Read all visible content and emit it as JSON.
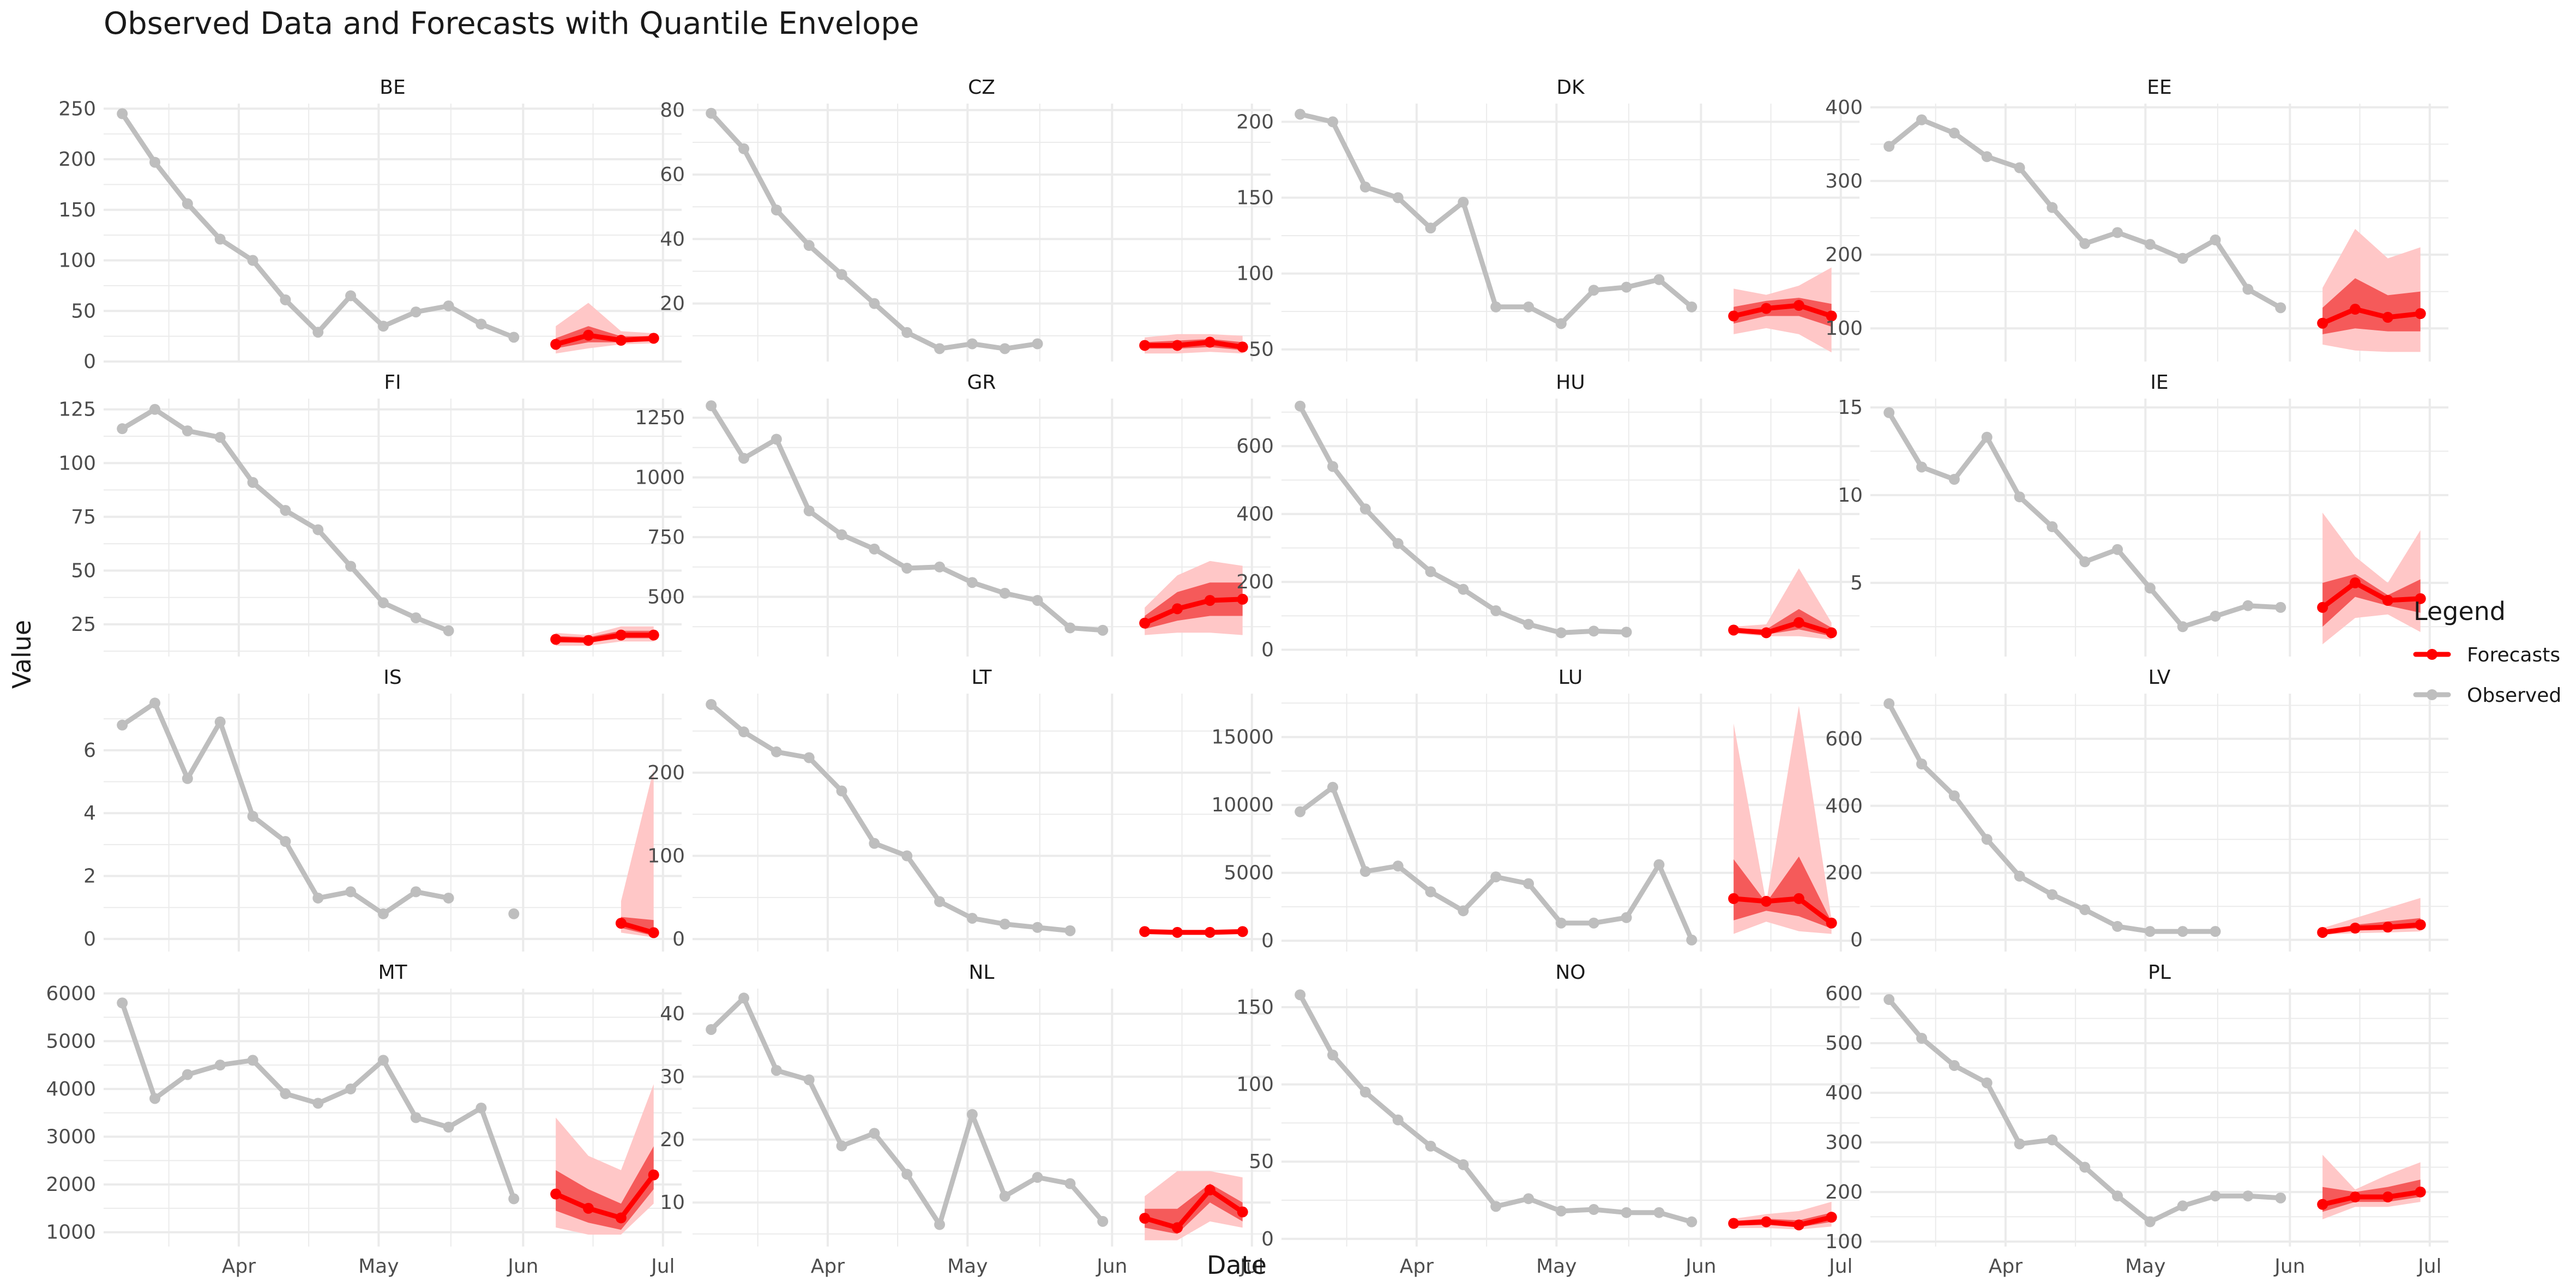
{
  "chart_data": {
    "type": "line",
    "title": "Observed Data and Forecasts with Quantile Envelope",
    "xlabel": "Date",
    "ylabel": "Value",
    "grid": true,
    "legend_placement": "right",
    "legend": {
      "title": "Legend",
      "entries": [
        {
          "name": "Forecasts",
          "color": "#ff0000"
        },
        {
          "name": "Observed",
          "color": "#bebebe"
        }
      ]
    },
    "colors": {
      "observed": "#bebebe",
      "forecast": "#ff0000",
      "band_outer": "#ffc7c7",
      "band_inner": "#f55a5a",
      "grid": "#ebebeb"
    },
    "x_axis": {
      "ticks": [
        {
          "label": "Apr",
          "date": "2021-04-01"
        },
        {
          "label": "May",
          "date": "2021-05-01"
        },
        {
          "label": "Jun",
          "date": "2021-06-01"
        },
        {
          "label": "Jul",
          "date": "2021-07-01"
        }
      ],
      "xlim": [
        "2021-03-03",
        "2021-07-05"
      ],
      "observed_dates": [
        "2021-03-07",
        "2021-03-14",
        "2021-03-21",
        "2021-03-28",
        "2021-04-04",
        "2021-04-11",
        "2021-04-18",
        "2021-04-25",
        "2021-05-02",
        "2021-05-09",
        "2021-05-16",
        "2021-05-23",
        "2021-05-30"
      ],
      "forecast_dates": [
        "2021-06-08",
        "2021-06-15",
        "2021-06-22",
        "2021-06-29"
      ]
    },
    "panels": [
      {
        "name": "BE",
        "ylim": [
          0,
          255
        ],
        "yticks": [
          0,
          50,
          100,
          150,
          200,
          250
        ],
        "observed": [
          245,
          197,
          156,
          121,
          100,
          61,
          29,
          65,
          35,
          49,
          55,
          37,
          24
        ],
        "forecast": [
          17,
          26,
          21,
          23
        ],
        "q_outer_low": [
          8,
          13,
          17,
          18
        ],
        "q_outer_high": [
          35,
          58,
          30,
          28
        ],
        "q_inner_low": [
          13,
          19,
          19,
          20
        ],
        "q_inner_high": [
          23,
          35,
          25,
          25
        ]
      },
      {
        "name": "CZ",
        "ylim": [
          2,
          82
        ],
        "yticks": [
          20,
          40,
          60,
          80
        ],
        "observed": [
          79,
          68,
          49,
          38,
          29,
          20,
          11,
          6,
          7.5,
          6,
          7.5,
          null,
          null
        ],
        "forecast": [
          7,
          7,
          8,
          6.5
        ],
        "q_outer_low": [
          4.5,
          4.5,
          5,
          4.5
        ],
        "q_outer_high": [
          9.5,
          10.5,
          10.5,
          10
        ],
        "q_inner_low": [
          6,
          6,
          6.5,
          5.5
        ],
        "q_inner_high": [
          8,
          8.5,
          9,
          8
        ]
      },
      {
        "name": "DK",
        "ylim": [
          42,
          212
        ],
        "yticks": [
          50,
          100,
          150,
          200
        ],
        "observed": [
          205,
          200,
          157,
          150,
          130,
          147,
          78,
          78,
          67,
          89,
          91,
          96,
          78
        ],
        "forecast": [
          72,
          77,
          79,
          72
        ],
        "q_outer_low": [
          60,
          64,
          60,
          48
        ],
        "q_outer_high": [
          90,
          86,
          92,
          104
        ],
        "q_inner_low": [
          67,
          72,
          72,
          65
        ],
        "q_inner_high": [
          78,
          82,
          84,
          80
        ]
      },
      {
        "name": "EE",
        "ylim": [
          55,
          405
        ],
        "yticks": [
          100,
          200,
          300,
          400
        ],
        "observed": [
          347,
          383,
          365,
          333,
          318,
          264,
          215,
          230,
          214,
          195,
          220,
          153,
          128
        ],
        "forecast": [
          107,
          126,
          115,
          120
        ],
        "q_outer_low": [
          78,
          70,
          68,
          68
        ],
        "q_outer_high": [
          155,
          235,
          195,
          210
        ],
        "q_inner_low": [
          92,
          100,
          96,
          96
        ],
        "q_inner_high": [
          128,
          168,
          145,
          150
        ]
      },
      {
        "name": "FI",
        "ylim": [
          10,
          130
        ],
        "yticks": [
          25,
          50,
          75,
          100,
          125
        ],
        "observed": [
          116,
          125,
          115,
          112,
          91,
          78,
          69,
          52,
          35,
          28,
          22,
          null,
          null
        ],
        "forecast": [
          18,
          17.5,
          20,
          20
        ],
        "q_outer_low": [
          15,
          15,
          17,
          17
        ],
        "q_outer_high": [
          21,
          20,
          24,
          24
        ],
        "q_inner_low": [
          16.5,
          16.5,
          18.5,
          18.5
        ],
        "q_inner_high": [
          19.5,
          19,
          22,
          22
        ]
      },
      {
        "name": "GR",
        "ylim": [
          250,
          1330
        ],
        "yticks": [
          500,
          750,
          1000,
          1250
        ],
        "observed": [
          1300,
          1080,
          1160,
          860,
          760,
          700,
          620,
          625,
          560,
          515,
          485,
          370,
          360
        ],
        "forecast": [
          390,
          450,
          485,
          490
        ],
        "q_outer_low": [
          340,
          350,
          350,
          340
        ],
        "q_outer_high": [
          455,
          590,
          650,
          630
        ],
        "q_inner_low": [
          365,
          400,
          420,
          420
        ],
        "q_inner_high": [
          420,
          520,
          560,
          560
        ]
      },
      {
        "name": "HU",
        "ylim": [
          -20,
          740
        ],
        "yticks": [
          0,
          200,
          400,
          600
        ],
        "observed": [
          718,
          540,
          415,
          313,
          230,
          178,
          115,
          75,
          50,
          55,
          52,
          null,
          null
        ],
        "forecast": [
          58,
          50,
          80,
          50
        ],
        "q_outer_low": [
          48,
          40,
          40,
          30
        ],
        "q_outer_high": [
          68,
          75,
          240,
          80
        ],
        "q_inner_low": [
          53,
          45,
          60,
          40
        ],
        "q_inner_high": [
          63,
          60,
          120,
          65
        ]
      },
      {
        "name": "IE",
        "ylim": [
          0.8,
          15.5
        ],
        "yticks": [
          5,
          10,
          15
        ],
        "observed": [
          14.7,
          11.6,
          10.9,
          13.3,
          9.9,
          8.2,
          6.2,
          6.9,
          4.7,
          2.5,
          3.1,
          3.7,
          3.6
        ],
        "forecast": [
          3.6,
          5,
          4,
          4.1
        ],
        "q_outer_low": [
          1.5,
          3,
          3.2,
          2.2
        ],
        "q_outer_high": [
          9,
          6.5,
          5,
          8
        ],
        "q_inner_low": [
          2.5,
          4.2,
          3.7,
          3.3
        ],
        "q_inner_high": [
          5,
          5.5,
          4.3,
          5.2
        ]
      },
      {
        "name": "IS",
        "ylim": [
          -0.4,
          7.8
        ],
        "yticks": [
          0,
          2,
          4,
          6
        ],
        "observed": [
          6.8,
          7.5,
          5.1,
          6.9,
          3.9,
          3.1,
          1.3,
          1.5,
          0.8,
          1.5,
          1.3,
          null,
          0.8
        ],
        "forecast": [
          null,
          null,
          0.5,
          0.2
        ],
        "q_outer_low": [
          null,
          null,
          0.2,
          0.05
        ],
        "q_outer_high": [
          null,
          null,
          1.2,
          5.4
        ],
        "q_inner_low": [
          null,
          null,
          0.35,
          0.1
        ],
        "q_inner_high": [
          null,
          null,
          0.7,
          0.6
        ]
      },
      {
        "name": "LT",
        "ylim": [
          -15,
          295
        ],
        "yticks": [
          0,
          100,
          200
        ],
        "observed": [
          282,
          249,
          225,
          218,
          178,
          115,
          100,
          45,
          25,
          18,
          14,
          10,
          null
        ],
        "forecast": [
          9,
          8,
          8,
          9
        ],
        "q_outer_low": [
          6,
          6,
          6,
          6
        ],
        "q_outer_high": [
          12,
          11,
          11,
          12
        ],
        "q_inner_low": [
          7.5,
          7,
          7,
          7.5
        ],
        "q_inner_high": [
          10.5,
          9.5,
          9.5,
          10.5
        ]
      },
      {
        "name": "LU",
        "ylim": [
          -800,
          18200
        ],
        "yticks": [
          0,
          5000,
          10000,
          15000
        ],
        "observed": [
          9500,
          11300,
          5100,
          5500,
          3600,
          2200,
          4700,
          4200,
          1300,
          1300,
          1700,
          5600,
          50
        ],
        "forecast": [
          3100,
          2900,
          3100,
          1300
        ],
        "q_outer_low": [
          500,
          1400,
          700,
          500
        ],
        "q_outer_high": [
          16000,
          2800,
          17300,
          1600
        ],
        "q_inner_low": [
          1500,
          2200,
          1800,
          900
        ],
        "q_inner_high": [
          6000,
          2800,
          6200,
          1400
        ]
      },
      {
        "name": "LV",
        "ylim": [
          -35,
          735
        ],
        "yticks": [
          0,
          200,
          400,
          600
        ],
        "observed": [
          705,
          525,
          430,
          300,
          190,
          135,
          90,
          40,
          25,
          25,
          25,
          null,
          null
        ],
        "forecast": [
          22,
          35,
          38,
          45
        ],
        "q_outer_low": [
          15,
          20,
          22,
          25
        ],
        "q_outer_high": [
          35,
          65,
          95,
          125
        ],
        "q_inner_low": [
          18,
          28,
          30,
          35
        ],
        "q_inner_high": [
          28,
          45,
          55,
          65
        ]
      },
      {
        "name": "MT",
        "ylim": [
          700,
          6100
        ],
        "yticks": [
          1000,
          2000,
          3000,
          4000,
          5000,
          6000
        ],
        "observed": [
          5800,
          3800,
          4300,
          4500,
          4600,
          3900,
          3700,
          4000,
          4600,
          3400,
          3200,
          3600,
          1700
        ],
        "forecast": [
          1800,
          1500,
          1300,
          2200
        ],
        "q_outer_low": [
          1100,
          950,
          950,
          1600
        ],
        "q_outer_high": [
          3400,
          2600,
          2300,
          4100
        ],
        "q_inner_low": [
          1450,
          1200,
          1050,
          1900
        ],
        "q_inner_high": [
          2300,
          1900,
          1600,
          2800
        ]
      },
      {
        "name": "NL",
        "ylim": [
          3,
          44
        ],
        "yticks": [
          10,
          20,
          30,
          40
        ],
        "observed": [
          37.5,
          42.5,
          31,
          29.5,
          19,
          21,
          14.5,
          6.5,
          24,
          11,
          14,
          13,
          7
        ],
        "forecast": [
          7.5,
          6,
          12,
          8.5
        ],
        "q_outer_low": [
          4,
          4,
          7,
          6
        ],
        "q_outer_high": [
          11,
          15,
          15,
          14
        ],
        "q_inner_low": [
          6,
          5,
          10,
          7
        ],
        "q_inner_high": [
          9,
          9,
          13,
          10
        ]
      },
      {
        "name": "NO",
        "ylim": [
          -5,
          162
        ],
        "yticks": [
          0,
          50,
          100,
          150
        ],
        "observed": [
          158,
          119,
          95,
          77,
          60,
          48,
          21,
          26,
          18,
          19,
          17,
          17,
          11
        ],
        "forecast": [
          10,
          11,
          9,
          14
        ],
        "q_outer_low": [
          7,
          7,
          6,
          8
        ],
        "q_outer_high": [
          13,
          16,
          18,
          24
        ],
        "q_inner_low": [
          8.5,
          9,
          7.5,
          11
        ],
        "q_inner_high": [
          11.5,
          13,
          12,
          17
        ]
      },
      {
        "name": "PL",
        "ylim": [
          90,
          610
        ],
        "yticks": [
          100,
          200,
          300,
          400,
          500,
          600
        ],
        "observed": [
          588,
          510,
          455,
          420,
          297,
          305,
          250,
          192,
          140,
          172,
          192,
          192,
          188
        ],
        "forecast": [
          175,
          190,
          190,
          200
        ],
        "q_outer_low": [
          145,
          170,
          170,
          180
        ],
        "q_outer_high": [
          275,
          205,
          235,
          260
        ],
        "q_inner_low": [
          160,
          180,
          180,
          190
        ],
        "q_inner_high": [
          210,
          200,
          210,
          225
        ]
      }
    ]
  }
}
